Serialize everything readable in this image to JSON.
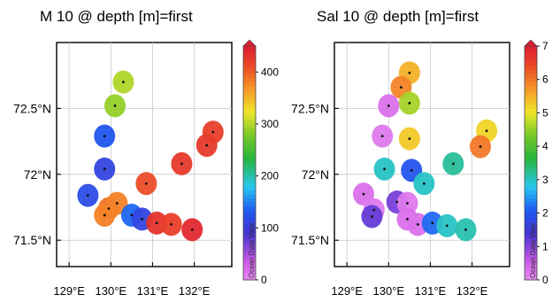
{
  "chart_data": [
    {
      "type": "scatter",
      "title": "M 10 @ depth [m]=first",
      "xlabel": "",
      "ylabel": "",
      "x_ticks": [
        "129°E",
        "130°E",
        "131°E",
        "132°E"
      ],
      "x_tick_values": [
        129,
        130,
        131,
        132
      ],
      "y_ticks": [
        "71.5°N",
        "72°N",
        "72.5°N"
      ],
      "y_tick_values": [
        71.5,
        72.0,
        72.5
      ],
      "xlim": [
        128.7,
        132.9
      ],
      "ylim": [
        71.3,
        73.0
      ],
      "colorbar": {
        "min": 0,
        "max": 450,
        "ticks": [
          0,
          100,
          200,
          300,
          400
        ],
        "tick_labels": [
          "0",
          "100",
          "200",
          "300",
          "400"
        ],
        "side_label": "Ocean Data View"
      },
      "points": [
        {
          "lon": 130.3,
          "lat": 72.7,
          "value": 300
        },
        {
          "lon": 130.1,
          "lat": 72.52,
          "value": 290
        },
        {
          "lon": 129.85,
          "lat": 72.29,
          "value": 130
        },
        {
          "lon": 129.85,
          "lat": 72.04,
          "value": 110
        },
        {
          "lon": 129.45,
          "lat": 71.84,
          "value": 120
        },
        {
          "lon": 129.95,
          "lat": 71.74,
          "value": 390
        },
        {
          "lon": 129.85,
          "lat": 71.69,
          "value": 380
        },
        {
          "lon": 130.15,
          "lat": 71.78,
          "value": 380
        },
        {
          "lon": 130.5,
          "lat": 71.69,
          "value": 140
        },
        {
          "lon": 130.75,
          "lat": 71.66,
          "value": 110
        },
        {
          "lon": 130.85,
          "lat": 71.93,
          "value": 410
        },
        {
          "lon": 131.1,
          "lat": 71.63,
          "value": 430
        },
        {
          "lon": 131.45,
          "lat": 71.62,
          "value": 420
        },
        {
          "lon": 131.95,
          "lat": 71.58,
          "value": 440
        },
        {
          "lon": 131.7,
          "lat": 72.08,
          "value": 425
        },
        {
          "lon": 132.45,
          "lat": 72.32,
          "value": 420
        },
        {
          "lon": 132.3,
          "lat": 72.22,
          "value": 425
        }
      ]
    },
    {
      "type": "scatter",
      "title": "Sal 10 @ depth [m]=first",
      "xlabel": "",
      "ylabel": "",
      "x_ticks": [
        "129°E",
        "130°E",
        "131°E",
        "132°E"
      ],
      "x_tick_values": [
        129,
        130,
        131,
        132
      ],
      "y_ticks": [
        "71.5°N",
        "72°N",
        "72.5°N"
      ],
      "y_tick_values": [
        71.5,
        72.0,
        72.5
      ],
      "xlim": [
        128.7,
        132.9
      ],
      "ylim": [
        71.3,
        73.0
      ],
      "colorbar": {
        "min": 0,
        "max": 7,
        "ticks": [
          0,
          1,
          2,
          3,
          4,
          5,
          6,
          7
        ],
        "tick_labels": [
          "0",
          "1",
          "2",
          "3",
          "4",
          "5",
          "6",
          "7"
        ],
        "side_label": "Ocean Data View"
      },
      "points": [
        {
          "lon": 130.5,
          "lat": 72.77,
          "value": 5.5
        },
        {
          "lon": 130.3,
          "lat": 72.66,
          "value": 5.9
        },
        {
          "lon": 130.5,
          "lat": 72.54,
          "value": 4.6
        },
        {
          "lon": 130.0,
          "lat": 72.52,
          "value": 0.3
        },
        {
          "lon": 129.85,
          "lat": 72.29,
          "value": 0.2
        },
        {
          "lon": 130.5,
          "lat": 72.27,
          "value": 5.3
        },
        {
          "lon": 129.9,
          "lat": 72.04,
          "value": 3.0
        },
        {
          "lon": 130.55,
          "lat": 72.03,
          "value": 2.0
        },
        {
          "lon": 130.85,
          "lat": 71.93,
          "value": 3.0
        },
        {
          "lon": 129.4,
          "lat": 71.85,
          "value": 0.3
        },
        {
          "lon": 130.2,
          "lat": 71.79,
          "value": 1.1
        },
        {
          "lon": 129.65,
          "lat": 71.73,
          "value": 0.2
        },
        {
          "lon": 129.6,
          "lat": 71.68,
          "value": 1.2
        },
        {
          "lon": 130.45,
          "lat": 71.78,
          "value": 0.2
        },
        {
          "lon": 130.45,
          "lat": 71.66,
          "value": 0.3
        },
        {
          "lon": 130.7,
          "lat": 71.62,
          "value": 0.3
        },
        {
          "lon": 131.05,
          "lat": 71.63,
          "value": 2.2
        },
        {
          "lon": 131.4,
          "lat": 71.61,
          "value": 3.0
        },
        {
          "lon": 131.85,
          "lat": 71.58,
          "value": 3.1
        },
        {
          "lon": 131.55,
          "lat": 72.08,
          "value": 3.2
        },
        {
          "lon": 132.35,
          "lat": 72.33,
          "value": 5.2
        },
        {
          "lon": 132.2,
          "lat": 72.21,
          "value": 6.0
        }
      ]
    }
  ]
}
